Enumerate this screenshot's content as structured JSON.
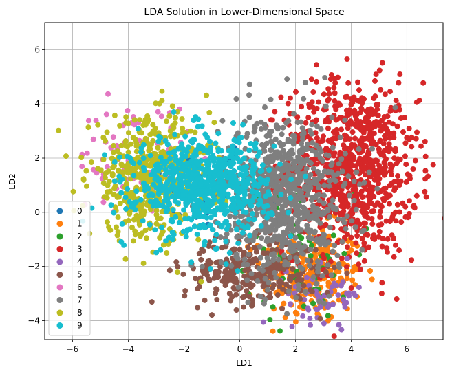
{
  "chart_data": {
    "type": "scatter",
    "title": "LDA Solution in Lower-Dimensional Space",
    "xlabel": "LD1",
    "ylabel": "LD2",
    "xlim": [
      -7.0,
      7.3
    ],
    "ylim": [
      -4.7,
      7.0
    ],
    "x_ticks": [
      -6,
      -4,
      -2,
      0,
      2,
      4,
      6
    ],
    "y_ticks": [
      -4,
      -2,
      0,
      2,
      4,
      6
    ],
    "x_tick_labels": [
      "−6",
      "−4",
      "−2",
      "0",
      "2",
      "4",
      "6"
    ],
    "y_tick_labels": [
      "−4",
      "−2",
      "0",
      "2",
      "4",
      "6"
    ],
    "grid": true,
    "legend_position": "lower-left",
    "series": [
      {
        "name": "0",
        "color": "#1f77b4",
        "center": [
          -1.5,
          1.0
        ],
        "spread": [
          1.0,
          0.9
        ],
        "count": 40
      },
      {
        "name": "1",
        "color": "#ff7f0e",
        "center": [
          2.6,
          -2.3
        ],
        "spread": [
          0.9,
          0.9
        ],
        "count": 250
      },
      {
        "name": "2",
        "color": "#2ca02c",
        "center": [
          2.2,
          -1.6
        ],
        "spread": [
          1.0,
          1.2
        ],
        "count": 60
      },
      {
        "name": "3",
        "color": "#d62728",
        "center": [
          4.0,
          1.6
        ],
        "spread": [
          1.2,
          1.6
        ],
        "count": 900
      },
      {
        "name": "4",
        "color": "#9467bd",
        "center": [
          3.1,
          -3.0
        ],
        "spread": [
          0.7,
          0.5
        ],
        "count": 60
      },
      {
        "name": "5",
        "color": "#8c564b",
        "center": [
          0.4,
          -2.2
        ],
        "spread": [
          1.2,
          0.6
        ],
        "count": 300
      },
      {
        "name": "6",
        "color": "#e377c2",
        "center": [
          -3.8,
          2.0
        ],
        "spread": [
          1.0,
          1.0
        ],
        "count": 80
      },
      {
        "name": "7",
        "color": "#7f7f7f",
        "center": [
          1.6,
          0.6
        ],
        "spread": [
          1.1,
          1.5
        ],
        "count": 800
      },
      {
        "name": "8",
        "color": "#bcbd22",
        "center": [
          -3.2,
          1.2
        ],
        "spread": [
          1.1,
          1.1
        ],
        "count": 500
      },
      {
        "name": "9",
        "color": "#17becf",
        "center": [
          -1.3,
          1.0
        ],
        "spread": [
          1.2,
          0.9
        ],
        "count": 700
      }
    ]
  }
}
